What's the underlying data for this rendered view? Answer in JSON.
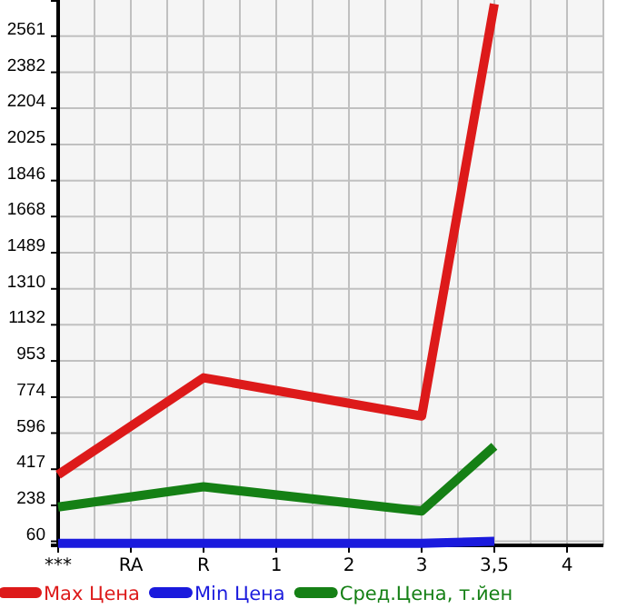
{
  "chart_data": {
    "type": "line",
    "categories": [
      "***",
      "RA",
      "R",
      "1",
      "2",
      "3",
      "3,5",
      "4"
    ],
    "series": [
      {
        "name": "Max Цена",
        "color": "#dd1a1a",
        "values": [
          390,
          null,
          870,
          null,
          null,
          680,
          2720,
          null
        ]
      },
      {
        "name": "Min Цена",
        "color": "#1a1add",
        "values": [
          50,
          null,
          50,
          null,
          null,
          50,
          60,
          null
        ]
      },
      {
        "name": "Сред.Цена, т.йен",
        "color": "#158015",
        "values": [
          230,
          null,
          330,
          null,
          null,
          210,
          530,
          null
        ]
      }
    ],
    "ylim": [
      40,
      2740
    ],
    "yticks": [
      60,
      238,
      417,
      596,
      774,
      953,
      1132,
      1310,
      1489,
      1668,
      1846,
      2025,
      2204,
      2382,
      2561
    ],
    "grid": true,
    "legend": "bottom",
    "marker": "none",
    "line_style": "solid"
  }
}
